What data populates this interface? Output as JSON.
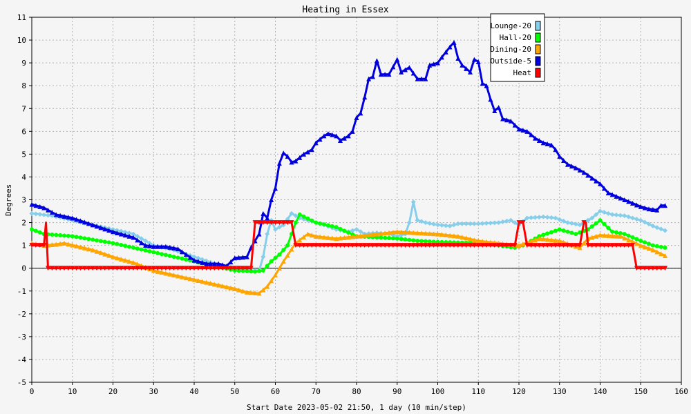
{
  "chart_data": {
    "type": "line",
    "title": "Heating in Essex",
    "xlabel": "Start Date 2023-05-02 21:50, 1 day (10 min/step)",
    "ylabel": "Degrees",
    "xlim": [
      0,
      160
    ],
    "ylim": [
      -5,
      11
    ],
    "x_ticks": [
      "0",
      "10",
      "20",
      "30",
      "40",
      "50",
      "60",
      "70",
      "80",
      "90",
      "100",
      "110",
      "120",
      "130",
      "140",
      "150",
      "160"
    ],
    "y_ticks": [
      "-5",
      "-4",
      "-3",
      "-2",
      "-1",
      "0",
      "1",
      "2",
      "3",
      "4",
      "5",
      "6",
      "7",
      "8",
      "9",
      "10",
      "11"
    ],
    "grid": true,
    "legend_position": "top-right",
    "series": [
      {
        "name": "Lounge-20",
        "color": "#87ceeb",
        "marker": "diamond",
        "points": [
          [
            0,
            2.4
          ],
          [
            5,
            2.3
          ],
          [
            10,
            2.1
          ],
          [
            15,
            1.9
          ],
          [
            20,
            1.7
          ],
          [
            25,
            1.5
          ],
          [
            30,
            1.0
          ],
          [
            35,
            0.8
          ],
          [
            40,
            0.5
          ],
          [
            45,
            0.2
          ],
          [
            50,
            0.0
          ],
          [
            54,
            -0.1
          ],
          [
            56,
            -0.1
          ],
          [
            57,
            0.5
          ],
          [
            58,
            1.5
          ],
          [
            59,
            2.1
          ],
          [
            60,
            1.7
          ],
          [
            62,
            1.9
          ],
          [
            64,
            2.4
          ],
          [
            66,
            2.2
          ],
          [
            68,
            2.1
          ],
          [
            70,
            2.0
          ],
          [
            72,
            1.9
          ],
          [
            75,
            1.7
          ],
          [
            78,
            1.6
          ],
          [
            80,
            1.7
          ],
          [
            82,
            1.5
          ],
          [
            85,
            1.55
          ],
          [
            88,
            1.5
          ],
          [
            90,
            1.4
          ],
          [
            92,
            1.5
          ],
          [
            93,
            2.0
          ],
          [
            94,
            2.9
          ],
          [
            95,
            2.1
          ],
          [
            97,
            2.0
          ],
          [
            100,
            1.9
          ],
          [
            103,
            1.85
          ],
          [
            105,
            1.95
          ],
          [
            110,
            1.95
          ],
          [
            115,
            2.0
          ],
          [
            118,
            2.1
          ],
          [
            120,
            1.9
          ],
          [
            122,
            2.2
          ],
          [
            126,
            2.25
          ],
          [
            129,
            2.2
          ],
          [
            132,
            2.0
          ],
          [
            135,
            1.9
          ],
          [
            138,
            2.2
          ],
          [
            140,
            2.5
          ],
          [
            143,
            2.35
          ],
          [
            146,
            2.3
          ],
          [
            150,
            2.1
          ],
          [
            153,
            1.85
          ],
          [
            156,
            1.65
          ]
        ]
      },
      {
        "name": "Hall-20",
        "color": "#00ff00",
        "marker": "circle",
        "points": [
          [
            0,
            1.7
          ],
          [
            3,
            1.5
          ],
          [
            10,
            1.4
          ],
          [
            20,
            1.1
          ],
          [
            30,
            0.7
          ],
          [
            40,
            0.3
          ],
          [
            50,
            -0.1
          ],
          [
            55,
            -0.15
          ],
          [
            57,
            -0.1
          ],
          [
            59,
            0.3
          ],
          [
            61,
            0.6
          ],
          [
            63,
            1.0
          ],
          [
            65,
            2.0
          ],
          [
            66,
            2.35
          ],
          [
            70,
            2.0
          ],
          [
            75,
            1.8
          ],
          [
            80,
            1.4
          ],
          [
            85,
            1.35
          ],
          [
            90,
            1.3
          ],
          [
            95,
            1.2
          ],
          [
            100,
            1.15
          ],
          [
            110,
            1.1
          ],
          [
            115,
            1.0
          ],
          [
            119,
            0.9
          ],
          [
            121,
            1.0
          ],
          [
            125,
            1.4
          ],
          [
            130,
            1.7
          ],
          [
            134,
            1.5
          ],
          [
            137,
            1.7
          ],
          [
            140,
            2.1
          ],
          [
            143,
            1.6
          ],
          [
            146,
            1.5
          ],
          [
            150,
            1.2
          ],
          [
            153,
            1.0
          ],
          [
            156,
            0.9
          ]
        ]
      },
      {
        "name": "Dining-20",
        "color": "#ffa500",
        "marker": "triangle",
        "points": [
          [
            0,
            1.1
          ],
          [
            3,
            1.0
          ],
          [
            6,
            1.05
          ],
          [
            8,
            1.1
          ],
          [
            15,
            0.8
          ],
          [
            20,
            0.5
          ],
          [
            25,
            0.25
          ],
          [
            30,
            -0.1
          ],
          [
            35,
            -0.3
          ],
          [
            40,
            -0.5
          ],
          [
            45,
            -0.7
          ],
          [
            50,
            -0.9
          ],
          [
            53,
            -1.05
          ],
          [
            56,
            -1.1
          ],
          [
            58,
            -0.8
          ],
          [
            60,
            -0.3
          ],
          [
            62,
            0.3
          ],
          [
            65,
            1.1
          ],
          [
            68,
            1.5
          ],
          [
            70,
            1.4
          ],
          [
            75,
            1.3
          ],
          [
            80,
            1.4
          ],
          [
            85,
            1.5
          ],
          [
            90,
            1.6
          ],
          [
            95,
            1.55
          ],
          [
            100,
            1.5
          ],
          [
            105,
            1.4
          ],
          [
            110,
            1.2
          ],
          [
            115,
            1.1
          ],
          [
            120,
            1.0
          ],
          [
            125,
            1.3
          ],
          [
            130,
            1.2
          ],
          [
            135,
            0.9
          ],
          [
            137,
            1.3
          ],
          [
            140,
            1.45
          ],
          [
            145,
            1.4
          ],
          [
            150,
            1.0
          ],
          [
            153,
            0.8
          ],
          [
            156,
            0.55
          ]
        ]
      },
      {
        "name": "Outside-5",
        "color": "#0000dd",
        "marker": "triangle",
        "points": [
          [
            0,
            2.8
          ],
          [
            3,
            2.65
          ],
          [
            6,
            2.35
          ],
          [
            10,
            2.2
          ],
          [
            15,
            1.9
          ],
          [
            20,
            1.6
          ],
          [
            25,
            1.35
          ],
          [
            28,
            1.0
          ],
          [
            30,
            0.95
          ],
          [
            33,
            0.95
          ],
          [
            36,
            0.85
          ],
          [
            40,
            0.35
          ],
          [
            43,
            0.2
          ],
          [
            46,
            0.2
          ],
          [
            48,
            0.1
          ],
          [
            50,
            0.45
          ],
          [
            53,
            0.5
          ],
          [
            54,
            0.9
          ],
          [
            55,
            1.2
          ],
          [
            56,
            1.5
          ],
          [
            57,
            2.4
          ],
          [
            58,
            2.2
          ],
          [
            59,
            3.0
          ],
          [
            60,
            3.5
          ],
          [
            61,
            4.6
          ],
          [
            62,
            5.05
          ],
          [
            63,
            4.9
          ],
          [
            64,
            4.65
          ],
          [
            65,
            4.7
          ],
          [
            67,
            5.0
          ],
          [
            69,
            5.2
          ],
          [
            70,
            5.5
          ],
          [
            72,
            5.8
          ],
          [
            73,
            5.9
          ],
          [
            75,
            5.8
          ],
          [
            76,
            5.6
          ],
          [
            78,
            5.8
          ],
          [
            79,
            6.0
          ],
          [
            80,
            6.6
          ],
          [
            81,
            6.8
          ],
          [
            82,
            7.5
          ],
          [
            83,
            8.3
          ],
          [
            84,
            8.4
          ],
          [
            85,
            9.1
          ],
          [
            86,
            8.5
          ],
          [
            88,
            8.5
          ],
          [
            90,
            9.15
          ],
          [
            91,
            8.6
          ],
          [
            93,
            8.8
          ],
          [
            95,
            8.3
          ],
          [
            97,
            8.3
          ],
          [
            98,
            8.9
          ],
          [
            100,
            9.0
          ],
          [
            101,
            9.25
          ],
          [
            103,
            9.7
          ],
          [
            104,
            9.9
          ],
          [
            105,
            9.2
          ],
          [
            106,
            8.9
          ],
          [
            108,
            8.6
          ],
          [
            109,
            9.15
          ],
          [
            110,
            9.05
          ],
          [
            111,
            8.1
          ],
          [
            112,
            8.0
          ],
          [
            113,
            7.4
          ],
          [
            114,
            6.9
          ],
          [
            115,
            7.05
          ],
          [
            116,
            6.55
          ],
          [
            118,
            6.45
          ],
          [
            120,
            6.1
          ],
          [
            122,
            6.0
          ],
          [
            124,
            5.7
          ],
          [
            126,
            5.5
          ],
          [
            128,
            5.4
          ],
          [
            129,
            5.2
          ],
          [
            130,
            4.9
          ],
          [
            132,
            4.55
          ],
          [
            134,
            4.4
          ],
          [
            136,
            4.2
          ],
          [
            138,
            3.95
          ],
          [
            140,
            3.7
          ],
          [
            142,
            3.3
          ],
          [
            144,
            3.15
          ],
          [
            146,
            3.0
          ],
          [
            148,
            2.85
          ],
          [
            150,
            2.7
          ],
          [
            152,
            2.6
          ],
          [
            154,
            2.55
          ],
          [
            155,
            2.75
          ],
          [
            156,
            2.75
          ]
        ]
      },
      {
        "name": "Heat",
        "color": "#ff0000",
        "marker": "triangle-down",
        "points": [
          [
            0,
            1
          ],
          [
            3,
            1
          ],
          [
            3.5,
            2
          ],
          [
            4,
            0
          ],
          [
            54,
            0
          ],
          [
            55,
            2
          ],
          [
            64,
            2
          ],
          [
            65,
            1
          ],
          [
            119,
            1
          ],
          [
            120,
            2
          ],
          [
            121,
            2
          ],
          [
            122,
            1
          ],
          [
            135,
            1
          ],
          [
            136,
            2
          ],
          [
            136.5,
            2
          ],
          [
            137,
            1
          ],
          [
            148,
            1
          ],
          [
            149,
            0
          ],
          [
            156,
            0
          ]
        ]
      }
    ]
  }
}
